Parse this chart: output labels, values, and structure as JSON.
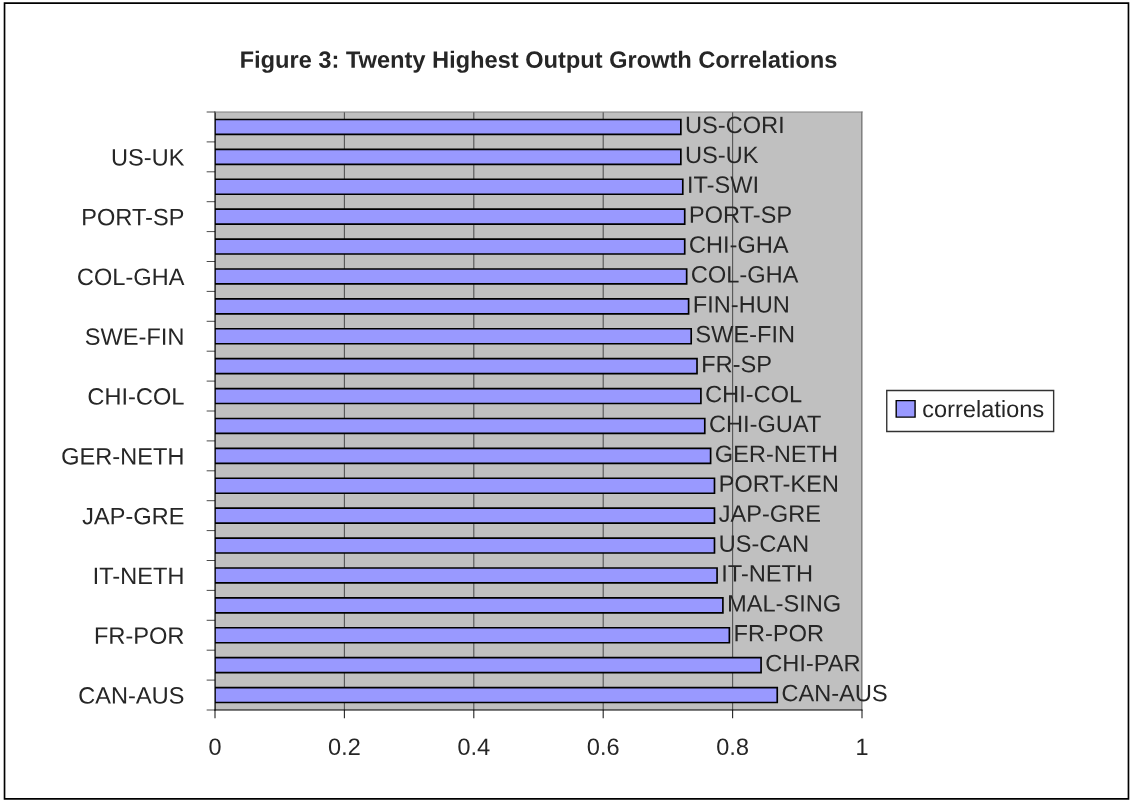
{
  "chart_data": {
    "type": "bar",
    "orientation": "horizontal",
    "title": "Figure 3: Twenty Highest Output Growth Correlations",
    "categories": [
      null,
      "US-UK",
      null,
      "PORT-SP",
      null,
      "COL-GHA",
      null,
      "SWE-FIN",
      null,
      "CHI-COL",
      null,
      "GER-NETH",
      null,
      "JAP-GRE",
      null,
      "IT-NETH",
      null,
      "FR-POR",
      null,
      "CAN-AUS"
    ],
    "series": [
      {
        "name": "correlations",
        "color": "#9999ff",
        "values": [
          0.72,
          0.72,
          0.723,
          0.726,
          0.726,
          0.729,
          0.732,
          0.736,
          0.745,
          0.751,
          0.757,
          0.766,
          0.772,
          0.772,
          0.772,
          0.776,
          0.785,
          0.795,
          0.844,
          0.869
        ],
        "value_labels": [
          "US-CORI",
          "US-UK",
          "IT-SWI",
          "PORT-SP",
          "CHI-GHA",
          "COL-GHA",
          "FIN-HUN",
          "SWE-FIN",
          "FR-SP",
          "CHI-COL",
          "CHI-GUAT",
          "GER-NETH",
          "PORT-KEN",
          "JAP-GRE",
          "US-CAN",
          "IT-NETH",
          "MAL-SING",
          "FR-POR",
          "CHI-PAR",
          "CAN-AUS"
        ]
      }
    ],
    "xlim": [
      0,
      1
    ],
    "xticks": [
      0,
      0.2,
      0.4,
      0.6,
      0.8,
      1
    ],
    "grid": "x",
    "legend": "right"
  }
}
